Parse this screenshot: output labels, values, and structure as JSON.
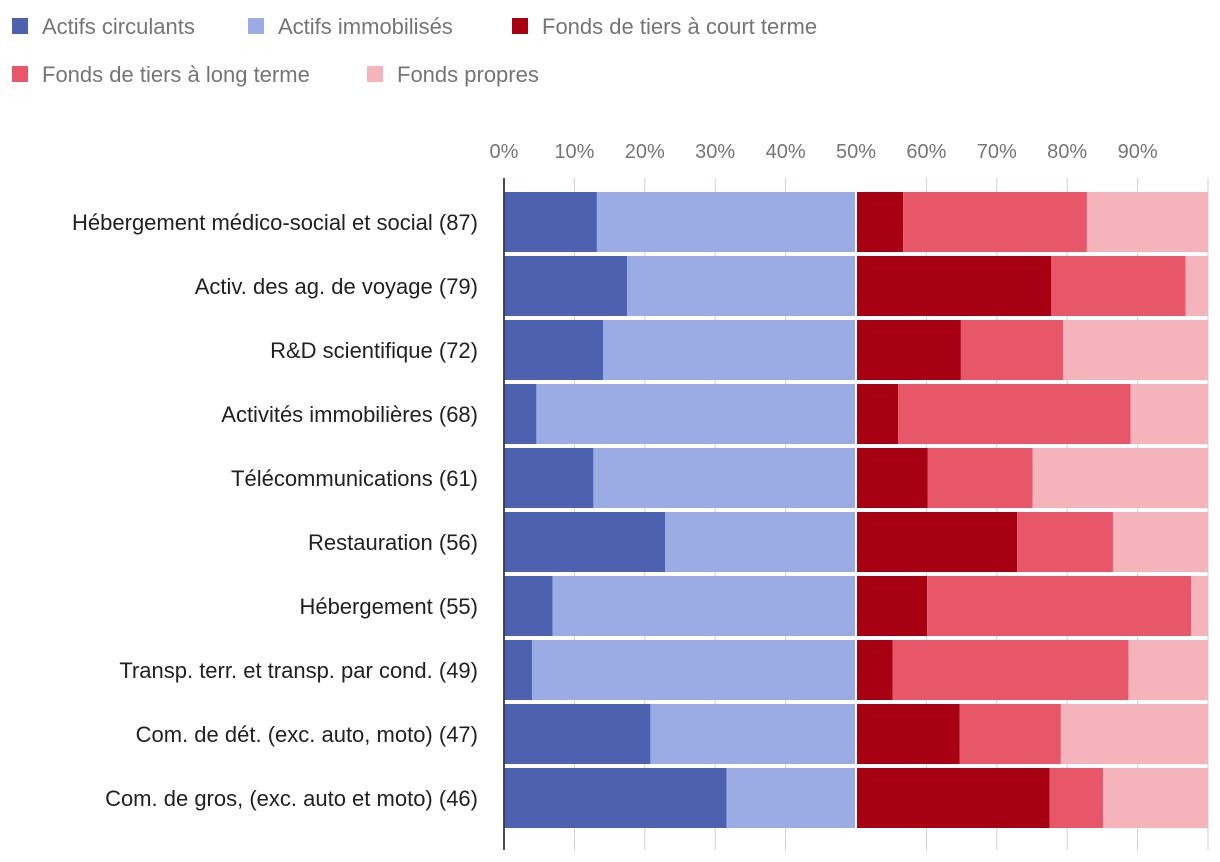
{
  "chart_data": {
    "type": "bar",
    "orientation": "horizontal",
    "stacked": "percent",
    "title": "",
    "xlabel": "",
    "ylabel": "",
    "xlim": [
      0,
      100
    ],
    "x_ticks": [
      "0%",
      "10%",
      "20%",
      "30%",
      "40%",
      "50%",
      "60%",
      "70%",
      "80%",
      "90%"
    ],
    "grid": true,
    "legend_position": "top-left",
    "categories": [
      "Hébergement médico-social et social (87)",
      "Activ. des ag. de voyage (79)",
      "R&D scientifique (72)",
      "Activités immobilières (68)",
      "Télécommunications (61)",
      "Restauration (56)",
      "Hébergement (55)",
      "Transp. terr. et transp. par cond. (49)",
      "Com. de dét. (exc. auto, moto) (47)",
      "Com. de gros, (exc. auto et moto) (46)"
    ],
    "series": [
      {
        "name": "Actifs circulants",
        "color": "#4c62b0",
        "values": [
          13.2,
          17.5,
          14.1,
          4.6,
          12.7,
          22.9,
          6.9,
          4.0,
          20.8,
          31.6
        ]
      },
      {
        "name": "Actifs immobilisés",
        "color": "#9bace4",
        "values": [
          36.8,
          32.5,
          35.9,
          45.4,
          37.3,
          27.1,
          43.1,
          46.0,
          29.2,
          18.4
        ]
      },
      {
        "name": "Fonds de tiers à court terme",
        "color": "#a70013",
        "values": [
          6.7,
          27.7,
          14.9,
          6.0,
          10.2,
          22.9,
          10.1,
          5.2,
          14.7,
          27.5
        ]
      },
      {
        "name": "Fonds de tiers à long terme",
        "color": "#e8566a",
        "values": [
          26.1,
          19.1,
          14.5,
          33.0,
          14.9,
          13.6,
          37.5,
          33.5,
          14.4,
          7.6
        ]
      },
      {
        "name": "Fonds propres",
        "color": "#f5b3bc",
        "values": [
          17.2,
          3.2,
          20.6,
          11.0,
          24.9,
          13.5,
          2.4,
          11.3,
          20.9,
          14.9
        ]
      }
    ]
  }
}
